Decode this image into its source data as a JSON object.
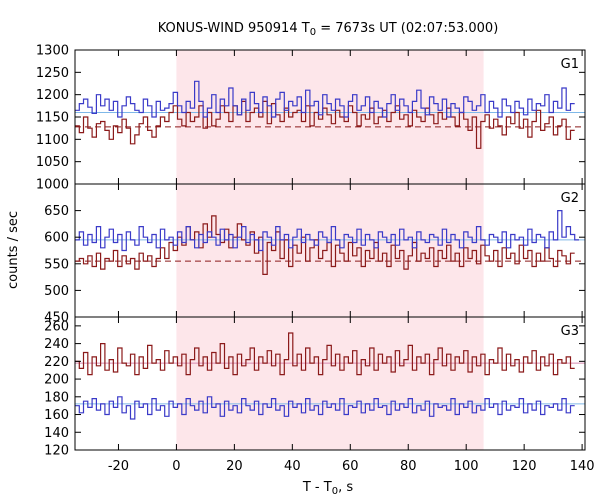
{
  "chart_data": {
    "type": "line",
    "title": {
      "main": "KONUS-WIND 950914 T",
      "sub": "0",
      "rest": " = 7673s UT (02:07:53.000)"
    },
    "xlabel": {
      "main": "T - T",
      "sub": "0",
      "rest": ", s"
    },
    "ylabel": "counts / sec",
    "xlim": [
      -35,
      141
    ],
    "xticks": [
      -20,
      0,
      20,
      40,
      60,
      80,
      100,
      120,
      140
    ],
    "shaded_interval": [
      0,
      106
    ],
    "bin_width": 1.474,
    "panels": [
      {
        "label": "G1",
        "ylim": [
          1000,
          1300
        ],
        "yticks": [
          1000,
          1050,
          1100,
          1150,
          1200,
          1250,
          1300
        ],
        "blue_background": 1160,
        "red_background": 1128,
        "blue_series": [
          1165,
          1180,
          1190,
          1172,
          1158,
          1200,
          1175,
          1190,
          1165,
          1185,
          1150,
          1175,
          1195,
          1180,
          1165,
          1160,
          1190,
          1175,
          1150,
          1185,
          1165,
          1170,
          1180,
          1205,
          1175,
          1160,
          1185,
          1170,
          1230,
          1185,
          1150,
          1170,
          1200,
          1160,
          1190,
          1175,
          1215,
          1175,
          1155,
          1190,
          1165,
          1205,
          1180,
          1160,
          1195,
          1175,
          1150,
          1190,
          1205,
          1165,
          1185,
          1175,
          1195,
          1160,
          1210,
          1175,
          1185,
          1155,
          1200,
          1180,
          1165,
          1190,
          1175,
          1150,
          1185,
          1200,
          1165,
          1175,
          1195,
          1160,
          1185,
          1170,
          1150,
          1180,
          1200,
          1165,
          1190,
          1175,
          1160,
          1185,
          1210,
          1170,
          1155,
          1195,
          1180,
          1165,
          1190,
          1150,
          1180,
          1170,
          1160,
          1195,
          1185,
          1165,
          1175,
          1200,
          1160,
          1185,
          1170,
          1150,
          1190,
          1175,
          1160,
          1185,
          1170,
          1155,
          1190,
          1165,
          1180,
          1175,
          1200,
          1160,
          1185,
          1170,
          1215,
          1165,
          1180
        ],
        "red_series": [
          1130,
          1115,
          1150,
          1125,
          1105,
          1135,
          1140,
          1120,
          1100,
          1130,
          1115,
          1145,
          1125,
          1090,
          1110,
          1135,
          1150,
          1120,
          1105,
          1130,
          1150,
          1140,
          1160,
          1175,
          1145,
          1130,
          1160,
          1140,
          1150,
          1175,
          1125,
          1160,
          1130,
          1145,
          1175,
          1160,
          1140,
          1175,
          1155,
          1185,
          1140,
          1160,
          1170,
          1150,
          1185,
          1135,
          1180,
          1155,
          1140,
          1170,
          1150,
          1160,
          1165,
          1140,
          1175,
          1130,
          1160,
          1145,
          1170,
          1155,
          1135,
          1165,
          1150,
          1140,
          1175,
          1160,
          1130,
          1155,
          1145,
          1170,
          1135,
          1150,
          1165,
          1140,
          1160,
          1175,
          1145,
          1155,
          1130,
          1165,
          1150,
          1140,
          1170,
          1155,
          1135,
          1160,
          1145,
          1170,
          1150,
          1130,
          1160,
          1145,
          1120,
          1150,
          1080,
          1140,
          1155,
          1125,
          1145,
          1130,
          1110,
          1150,
          1135,
          1160,
          1125,
          1145,
          1105,
          1140,
          1165,
          1120,
          1135,
          1150,
          1110,
          1130,
          1145,
          1100,
          1120
        ]
      },
      {
        "label": "G2",
        "ylim": [
          450,
          700
        ],
        "yticks": [
          450,
          500,
          550,
          600,
          650
        ],
        "blue_background": 595,
        "red_background": 555,
        "blue_series": [
          595,
          610,
          585,
          605,
          590,
          620,
          580,
          600,
          615,
          590,
          605,
          575,
          610,
          595,
          585,
          620,
          600,
          590,
          605,
          580,
          615,
          595,
          600,
          585,
          610,
          590,
          620,
          595,
          580,
          605,
          590,
          610,
          600,
          585,
          615,
          595,
          605,
          580,
          600,
          620,
          590,
          605,
          595,
          575,
          610,
          600,
          585,
          620,
          595,
          605,
          580,
          600,
          615,
          590,
          605,
          595,
          585,
          610,
          600,
          590,
          620,
          595,
          580,
          605,
          600,
          590,
          615,
          585,
          605,
          595,
          580,
          610,
          600,
          590,
          605,
          585,
          615,
          595,
          600,
          580,
          610,
          595,
          590,
          605,
          600,
          585,
          615,
          590,
          605,
          595,
          580,
          610,
          600,
          590,
          620,
          595,
          585,
          605,
          600,
          590,
          610,
          580,
          605,
          595,
          600,
          585,
          615,
          590,
          605,
          600,
          580,
          610,
          595,
          650,
          600,
          620,
          605,
          595
        ],
        "red_series": [
          555,
          560,
          550,
          565,
          545,
          570,
          540,
          560,
          555,
          575,
          545,
          565,
          550,
          560,
          540,
          570,
          555,
          565,
          545,
          560,
          580,
          560,
          590,
          575,
          600,
          585,
          620,
          595,
          610,
          580,
          625,
          600,
          640,
          605,
          590,
          615,
          580,
          600,
          625,
          595,
          585,
          610,
          570,
          600,
          530,
          590,
          575,
          610,
          560,
          595,
          545,
          585,
          570,
          600,
          555,
          580,
          595,
          560,
          575,
          590,
          545,
          585,
          570,
          555,
          590,
          565,
          580,
          545,
          575,
          560,
          590,
          555,
          570,
          545,
          585,
          560,
          575,
          540,
          565,
          590,
          555,
          570,
          560,
          580,
          545,
          575,
          560,
          585,
          555,
          570,
          545,
          580,
          560,
          575,
          550,
          585,
          565,
          555,
          575,
          545,
          580,
          560,
          570,
          550,
          585,
          560,
          575,
          545,
          570,
          555,
          580,
          560,
          545,
          575,
          565,
          550,
          570
        ],
        "dashed_red": true
      },
      {
        "label": "G3",
        "ylim": [
          120,
          270
        ],
        "yticks": [
          120,
          140,
          160,
          180,
          200,
          220,
          240,
          260
        ],
        "blue_background": 172,
        "red_background": 218,
        "blue_series": [
          170,
          162,
          175,
          168,
          178,
          165,
          172,
          160,
          175,
          168,
          180,
          162,
          170,
          155,
          175,
          168,
          172,
          160,
          178,
          165,
          170,
          158,
          175,
          168,
          172,
          160,
          178,
          170,
          165,
          175,
          162,
          180,
          168,
          172,
          158,
          175,
          165,
          170,
          162,
          178,
          170,
          165,
          175,
          160,
          172,
          168,
          178,
          165,
          170,
          158,
          175,
          168,
          172,
          162,
          178,
          165,
          170,
          160,
          175,
          168,
          172,
          165,
          178,
          160,
          170,
          168,
          175,
          162,
          172,
          165,
          178,
          168,
          170,
          160,
          175,
          165,
          172,
          168,
          178,
          162,
          170,
          165,
          175,
          158,
          172,
          168,
          170,
          165,
          178,
          160,
          172,
          168,
          175,
          162,
          170,
          165,
          178,
          168,
          172,
          160,
          175,
          165,
          170,
          168,
          178,
          162,
          172,
          165,
          175,
          160,
          170,
          168,
          172,
          165,
          178,
          162,
          170
        ],
        "red_series": [
          220,
          212,
          230,
          205,
          225,
          215,
          240,
          210,
          222,
          208,
          235,
          218,
          215,
          228,
          205,
          225,
          212,
          238,
          218,
          222,
          210,
          232,
          218,
          225,
          215,
          228,
          205,
          222,
          235,
          215,
          225,
          210,
          230,
          218,
          240,
          212,
          225,
          205,
          228,
          215,
          222,
          235,
          210,
          225,
          218,
          232,
          215,
          228,
          205,
          222,
          252,
          215,
          228,
          210,
          235,
          218,
          225,
          205,
          222,
          238,
          215,
          228,
          210,
          225,
          218,
          232,
          205,
          222,
          215,
          235,
          210,
          228,
          218,
          225,
          208,
          232,
          215,
          222,
          238,
          210,
          225,
          218,
          228,
          205,
          222,
          235,
          215,
          228,
          210,
          225,
          218,
          232,
          208,
          225,
          215,
          228,
          205,
          222,
          218,
          235,
          210,
          228,
          215,
          222,
          208,
          225,
          218,
          232,
          210,
          225,
          215,
          228,
          205,
          222,
          218,
          225,
          212
        ]
      }
    ]
  },
  "colors": {
    "blue": "#3a3ac8",
    "red": "#8b1a1a",
    "blue_bg": "#7fb8e8",
    "red_bg": "#d88ab0",
    "shade": "#fde6ea"
  }
}
